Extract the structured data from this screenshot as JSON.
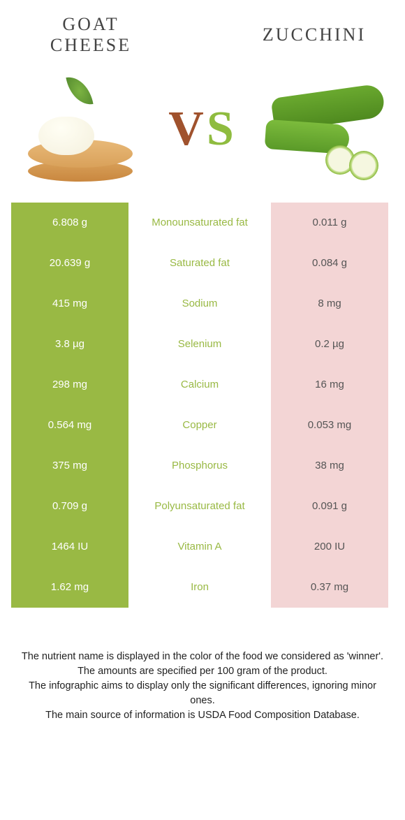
{
  "header": {
    "left_title": "GOAT CHEESE",
    "right_title": "ZUCCHINI",
    "vs_v": "V",
    "vs_s": "S"
  },
  "colors": {
    "left_cell_bg": "#99b944",
    "mid_text": "#99b944",
    "right_cell_bg": "#f3d5d5",
    "right_cell_text": "#555555",
    "left_cell_text": "#ffffff"
  },
  "rows": [
    {
      "left": "6.808 g",
      "label": "Monounsaturated fat",
      "right": "0.011 g"
    },
    {
      "left": "20.639 g",
      "label": "Saturated fat",
      "right": "0.084 g"
    },
    {
      "left": "415 mg",
      "label": "Sodium",
      "right": "8 mg"
    },
    {
      "left": "3.8 µg",
      "label": "Selenium",
      "right": "0.2 µg"
    },
    {
      "left": "298 mg",
      "label": "Calcium",
      "right": "16 mg"
    },
    {
      "left": "0.564 mg",
      "label": "Copper",
      "right": "0.053 mg"
    },
    {
      "left": "375 mg",
      "label": "Phosphorus",
      "right": "38 mg"
    },
    {
      "left": "0.709 g",
      "label": "Polyunsaturated fat",
      "right": "0.091 g"
    },
    {
      "left": "1464 IU",
      "label": "Vitamin A",
      "right": "200 IU"
    },
    {
      "left": "1.62 mg",
      "label": "Iron",
      "right": "0.37 mg"
    }
  ],
  "footer": {
    "line1": "The nutrient name is displayed in the color of the food we considered as 'winner'.",
    "line2": "The amounts are specified per 100 gram of the product.",
    "line3": "The infographic aims to display only the significant differences, ignoring minor ones.",
    "line4": "The main source of information is USDA Food Composition Database."
  }
}
